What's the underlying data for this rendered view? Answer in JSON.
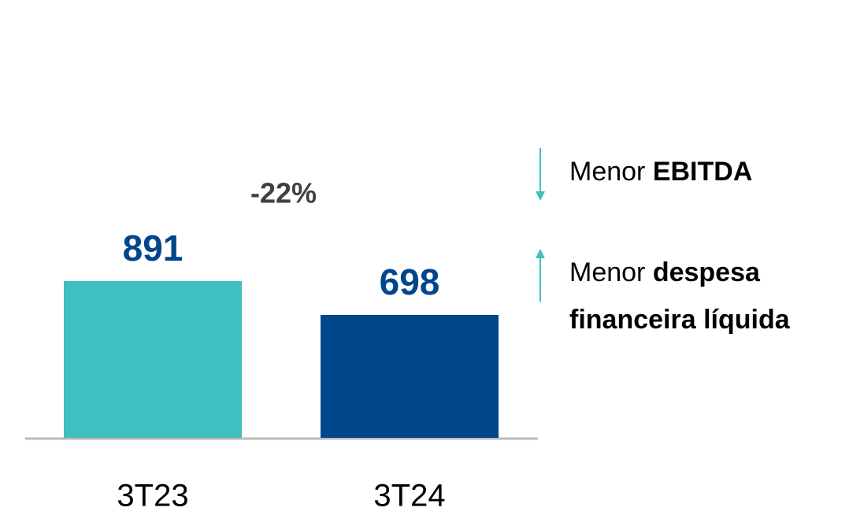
{
  "chart_data": {
    "type": "bar",
    "categories": [
      "3T23",
      "3T24"
    ],
    "values": [
      891,
      698
    ],
    "colors": [
      "#3fbfbf",
      "#00468b"
    ],
    "value_label_color": "#00468b",
    "change_label": "-22%",
    "annotations": [
      {
        "arrow": "down",
        "color": "#3fbfbf",
        "lines": [
          [
            {
              "text": "Menor "
            },
            {
              "text": "EBITDA",
              "bold": true
            }
          ]
        ]
      },
      {
        "arrow": "up",
        "color": "#3fbfbf",
        "lines": [
          [
            {
              "text": "Menor "
            },
            {
              "text": "despesa",
              "bold": true
            }
          ],
          [
            {
              "text": "financeira líquida",
              "bold": true
            }
          ]
        ]
      }
    ]
  }
}
